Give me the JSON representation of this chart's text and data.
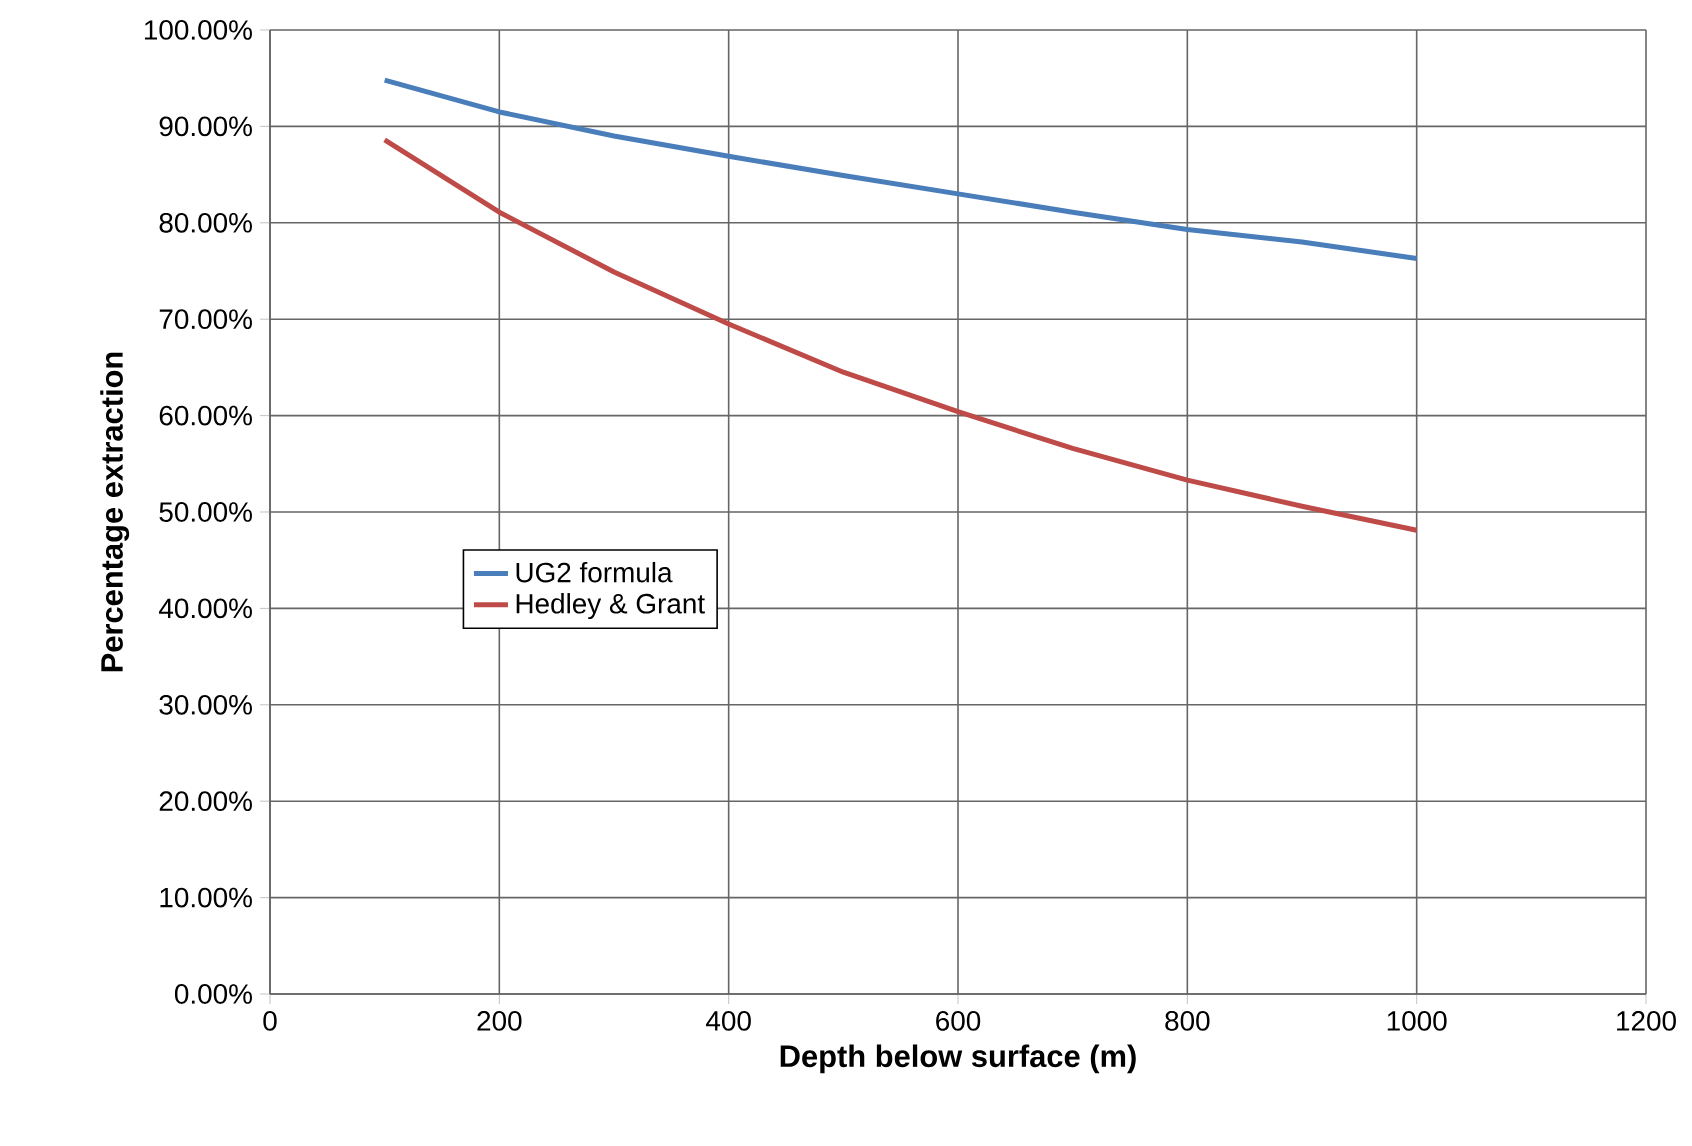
{
  "chart_data": {
    "type": "line",
    "xlabel": "Depth below surface (m)",
    "ylabel": "Percentage extraction",
    "x": [
      100,
      200,
      300,
      400,
      500,
      600,
      700,
      800,
      900,
      1000
    ],
    "series": [
      {
        "name": "UG2 formula",
        "color": "#4a7ebb",
        "values": [
          94.8,
          91.5,
          89.0,
          86.9,
          84.9,
          83.0,
          81.1,
          79.3,
          78.0,
          76.3
        ]
      },
      {
        "name": "Hedley & Grant",
        "color": "#be4b48",
        "values": [
          88.6,
          81.1,
          74.9,
          69.5,
          64.5,
          60.4,
          56.6,
          53.3,
          50.6,
          48.1
        ]
      }
    ],
    "xlim": [
      0,
      1200
    ],
    "xticks": [
      0,
      200,
      400,
      600,
      800,
      1000,
      1200
    ],
    "ylim": [
      0,
      100
    ],
    "yticks": [
      {
        "value": 0,
        "label": "0.00%"
      },
      {
        "value": 10,
        "label": "10.00%"
      },
      {
        "value": 20,
        "label": "20.00%"
      },
      {
        "value": 30,
        "label": "30.00%"
      },
      {
        "value": 40,
        "label": "40.00%"
      },
      {
        "value": 50,
        "label": "50.00%"
      },
      {
        "value": 60,
        "label": "60.00%"
      },
      {
        "value": 70,
        "label": "70.00%"
      },
      {
        "value": 80,
        "label": "80.00%"
      },
      {
        "value": 90,
        "label": "90.00%"
      },
      {
        "value": 100,
        "label": "100.00%"
      }
    ],
    "grid": true,
    "legend": "left"
  }
}
